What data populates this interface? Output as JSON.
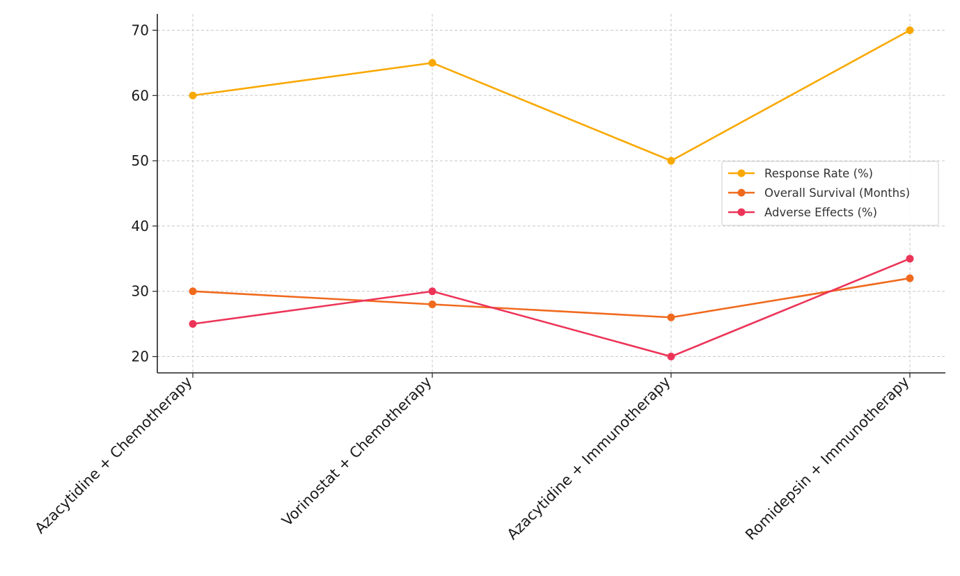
{
  "chart_data": {
    "type": "line",
    "categories": [
      "Azacytidine + Chemotherapy",
      "Vorinostat + Chemotherapy",
      "Azacytidine + Immunotherapy",
      "Romidepsin + Immunotherapy"
    ],
    "series": [
      {
        "name": "Response Rate (%)",
        "values": [
          60,
          65,
          50,
          70
        ],
        "color": "#f9a800"
      },
      {
        "name": "Overall Survival (Months)",
        "values": [
          30,
          28,
          26,
          32
        ],
        "color": "#f06a1e"
      },
      {
        "name": "Adverse Effects (%)",
        "values": [
          25,
          30,
          20,
          35
        ],
        "color": "#ec3458"
      }
    ],
    "yticks": [
      20,
      30,
      40,
      50,
      60,
      70
    ],
    "ylim": [
      17.5,
      72.5
    ],
    "grid": true,
    "legend": "center-right",
    "title": "",
    "xlabel": "",
    "ylabel": ""
  }
}
